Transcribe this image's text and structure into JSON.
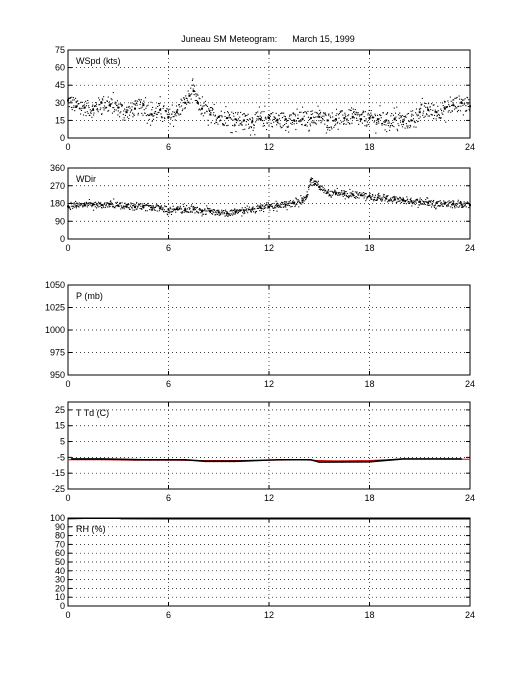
{
  "title": "Juneau SM Meteogram:      March 15, 1999",
  "chart_data": [
    {
      "type": "scatter",
      "label": "WSpd (kts)",
      "xlim": [
        0,
        24
      ],
      "xticks": [
        "0",
        "6",
        "12",
        "18",
        "24"
      ],
      "ylim": [
        0,
        75
      ],
      "yticks": [
        "0",
        "15",
        "30",
        "45",
        "60",
        "75"
      ],
      "grid": true,
      "series": [
        {
          "color": "#000000",
          "x": [
            0,
            0.5,
            1,
            1.5,
            2,
            2.5,
            3,
            3.5,
            4,
            4.5,
            5,
            5.5,
            6,
            6.5,
            7,
            7.25,
            7.5,
            7.75,
            8,
            8.5,
            9,
            9.5,
            10,
            10.5,
            11,
            11.5,
            12,
            12.5,
            13,
            13.5,
            14,
            14.5,
            15,
            15.5,
            16,
            16.5,
            17,
            17.5,
            18,
            18.5,
            19,
            19.5,
            20,
            20.5,
            21,
            21.5,
            22,
            22.5,
            23,
            23.5,
            24
          ],
          "values": [
            32,
            27,
            26,
            24,
            30,
            28,
            26,
            22,
            25,
            28,
            20,
            24,
            18,
            22,
            30,
            36,
            40,
            30,
            25,
            20,
            18,
            17,
            16,
            15,
            14,
            16,
            17,
            15,
            16,
            15,
            16,
            17,
            18,
            15,
            16,
            17,
            18,
            16,
            17,
            16,
            15,
            16,
            14,
            15,
            22,
            24,
            22,
            25,
            28,
            30,
            27
          ]
        }
      ]
    },
    {
      "type": "scatter",
      "label": "WDir",
      "xlim": [
        0,
        24
      ],
      "xticks": [
        "0",
        "6",
        "12",
        "18",
        "24"
      ],
      "ylim": [
        0,
        360
      ],
      "yticks": [
        "0",
        "90",
        "180",
        "270",
        "360"
      ],
      "grid": true,
      "series": [
        {
          "color": "#000000",
          "x": [
            0,
            0.5,
            1,
            1.5,
            2,
            2.5,
            3,
            3.5,
            4,
            4.5,
            5,
            5.5,
            6,
            6.5,
            7,
            7.5,
            8,
            8.5,
            9,
            9.5,
            10,
            10.5,
            11,
            11.5,
            12,
            12.5,
            13,
            13.5,
            14,
            14.25,
            14.5,
            14.75,
            15,
            15.5,
            16,
            16.5,
            17,
            17.5,
            18,
            18.5,
            19,
            19.5,
            20,
            20.5,
            21,
            21.5,
            22,
            22.5,
            23,
            23.5,
            24
          ],
          "values": [
            165,
            168,
            170,
            175,
            172,
            178,
            170,
            165,
            162,
            168,
            160,
            155,
            150,
            152,
            148,
            150,
            140,
            142,
            135,
            130,
            138,
            145,
            150,
            158,
            162,
            168,
            175,
            182,
            195,
            215,
            300,
            280,
            265,
            235,
            232,
            230,
            226,
            222,
            218,
            210,
            205,
            200,
            195,
            192,
            188,
            185,
            182,
            180,
            178,
            175,
            172
          ]
        }
      ]
    },
    {
      "type": "line",
      "label": "P (mb)",
      "xlim": [
        0,
        24
      ],
      "xticks": [
        "0",
        "6",
        "12",
        "18",
        "24"
      ],
      "ylim": [
        950,
        1050
      ],
      "yticks": [
        "950",
        "975",
        "1000",
        "1025",
        "1050"
      ],
      "grid": true,
      "series": []
    },
    {
      "type": "line",
      "label": "T Td (C)",
      "xlim": [
        0,
        24
      ],
      "xticks": [
        "0",
        "6",
        "12",
        "18",
        "24"
      ],
      "ylim": [
        -25,
        30
      ],
      "yticks": [
        "-25",
        "-15",
        "-5",
        "5",
        "15",
        "25"
      ],
      "grid": true,
      "series": [
        {
          "color": "#cc0000",
          "x": [
            0,
            2,
            4,
            6,
            8,
            10,
            12,
            14,
            15,
            16,
            18,
            20,
            22,
            24
          ],
          "values": [
            -6.5,
            -6.5,
            -6.8,
            -6.8,
            -7.0,
            -7.0,
            -6.8,
            -6.6,
            -7.0,
            -7.2,
            -7.0,
            -6.0,
            -6.0,
            -6.2
          ]
        },
        {
          "color": "#000000",
          "x": [
            0.2,
            2.0,
            4.5,
            7.0,
            8.2,
            10.0,
            12.5,
            14.5,
            15.0,
            18.0,
            20.0,
            23.5
          ],
          "values": [
            -6.0,
            -6.0,
            -6.5,
            -6.5,
            -7.5,
            -7.5,
            -6.5,
            -6.5,
            -8.0,
            -7.8,
            -6.0,
            -6.0
          ]
        }
      ]
    },
    {
      "type": "line",
      "label": "RH (%)",
      "xlim": [
        0,
        24
      ],
      "xticks": [
        "0",
        "6",
        "12",
        "18",
        "24"
      ],
      "ylim": [
        0,
        100
      ],
      "yticks": [
        "0",
        "10",
        "20",
        "30",
        "40",
        "50",
        "60",
        "70",
        "80",
        "90",
        "100"
      ],
      "grid": true,
      "series": [
        {
          "color": "#000000",
          "x": [
            0,
            1,
            3,
            3.2,
            6,
            12,
            18,
            24
          ],
          "values": [
            99,
            99.5,
            99.5,
            99,
            98.8,
            98.8,
            98.8,
            98.8
          ]
        }
      ]
    }
  ]
}
